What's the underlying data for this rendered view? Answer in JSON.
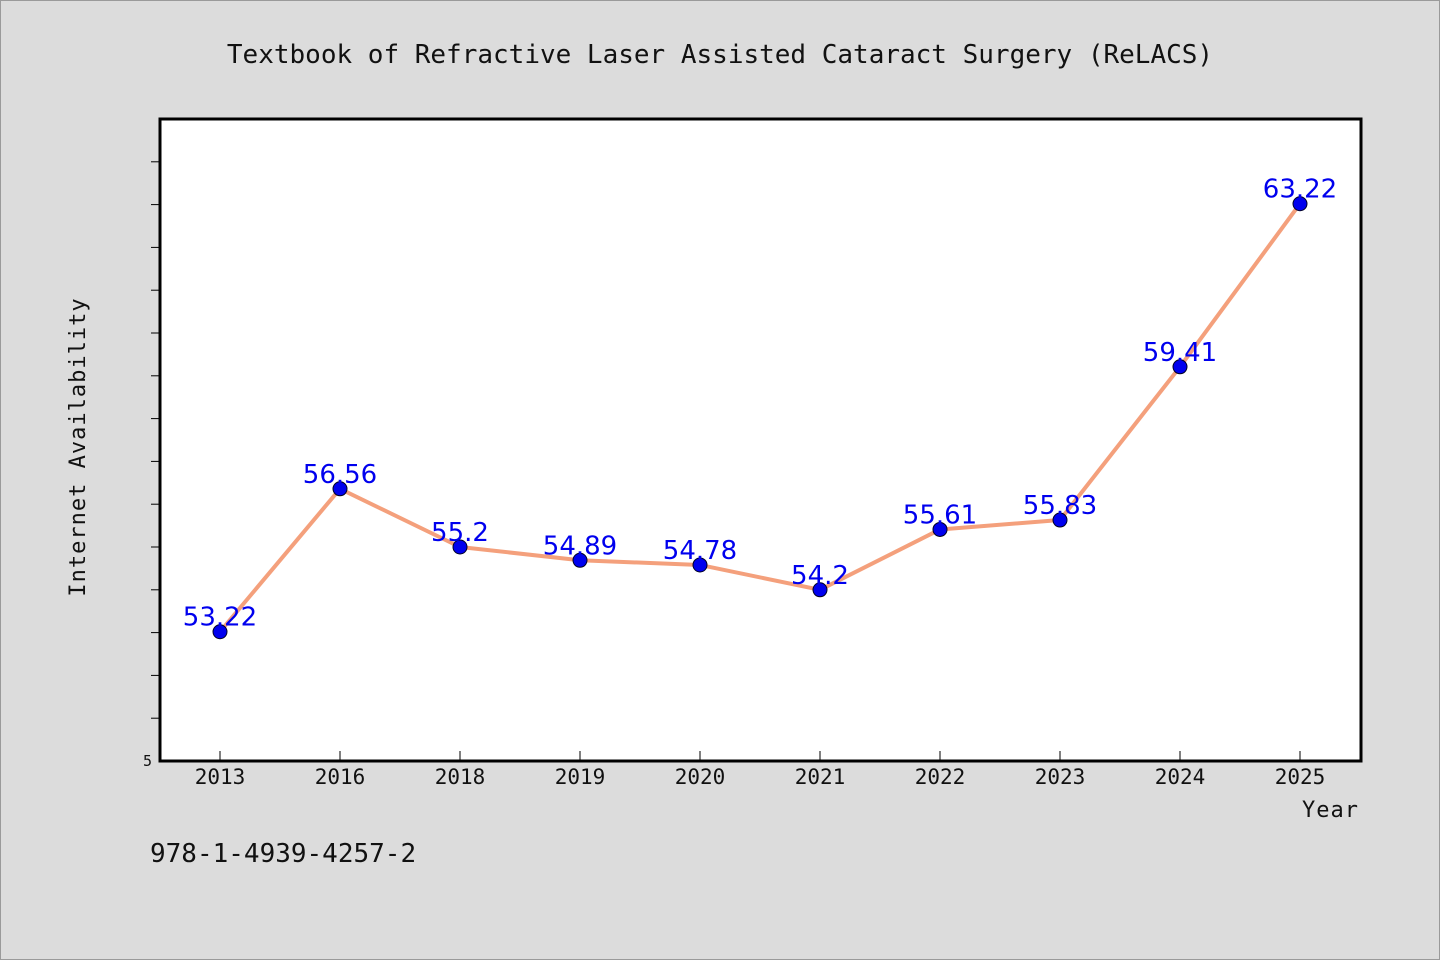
{
  "chart_data": {
    "type": "line",
    "title": "Textbook of Refractive Laser Assisted Cataract Surgery (ReLACS)",
    "xlabel": "Year",
    "ylabel": "Internet Availability",
    "categories": [
      "2013",
      "2016",
      "2018",
      "2019",
      "2020",
      "2021",
      "2022",
      "2023",
      "2024",
      "2025"
    ],
    "series": [
      {
        "values": [
          53.22,
          56.56,
          55.2,
          54.89,
          54.78,
          54.2,
          55.61,
          55.83,
          59.41,
          63.22
        ],
        "labels": [
          "53.22",
          "56.56",
          "55.2",
          "54.89",
          "54.78",
          "54.2",
          "55.61",
          "55.83",
          "59.41",
          "63.22"
        ]
      }
    ],
    "ylim": [
      50.2,
      65.2
    ],
    "ytick_labels": [
      {
        "value": 50.2,
        "label": "5"
      }
    ],
    "minor_tick_step": 1,
    "grid": false,
    "legend": "none",
    "colors": {
      "line": "#f4a07c",
      "marker": "#0000ee",
      "data_label": "#0000ee",
      "plot_background": "#ffffff",
      "page_background": "#dcdcdc"
    }
  },
  "footer": {
    "isbn": "978-1-4939-4257-2"
  }
}
